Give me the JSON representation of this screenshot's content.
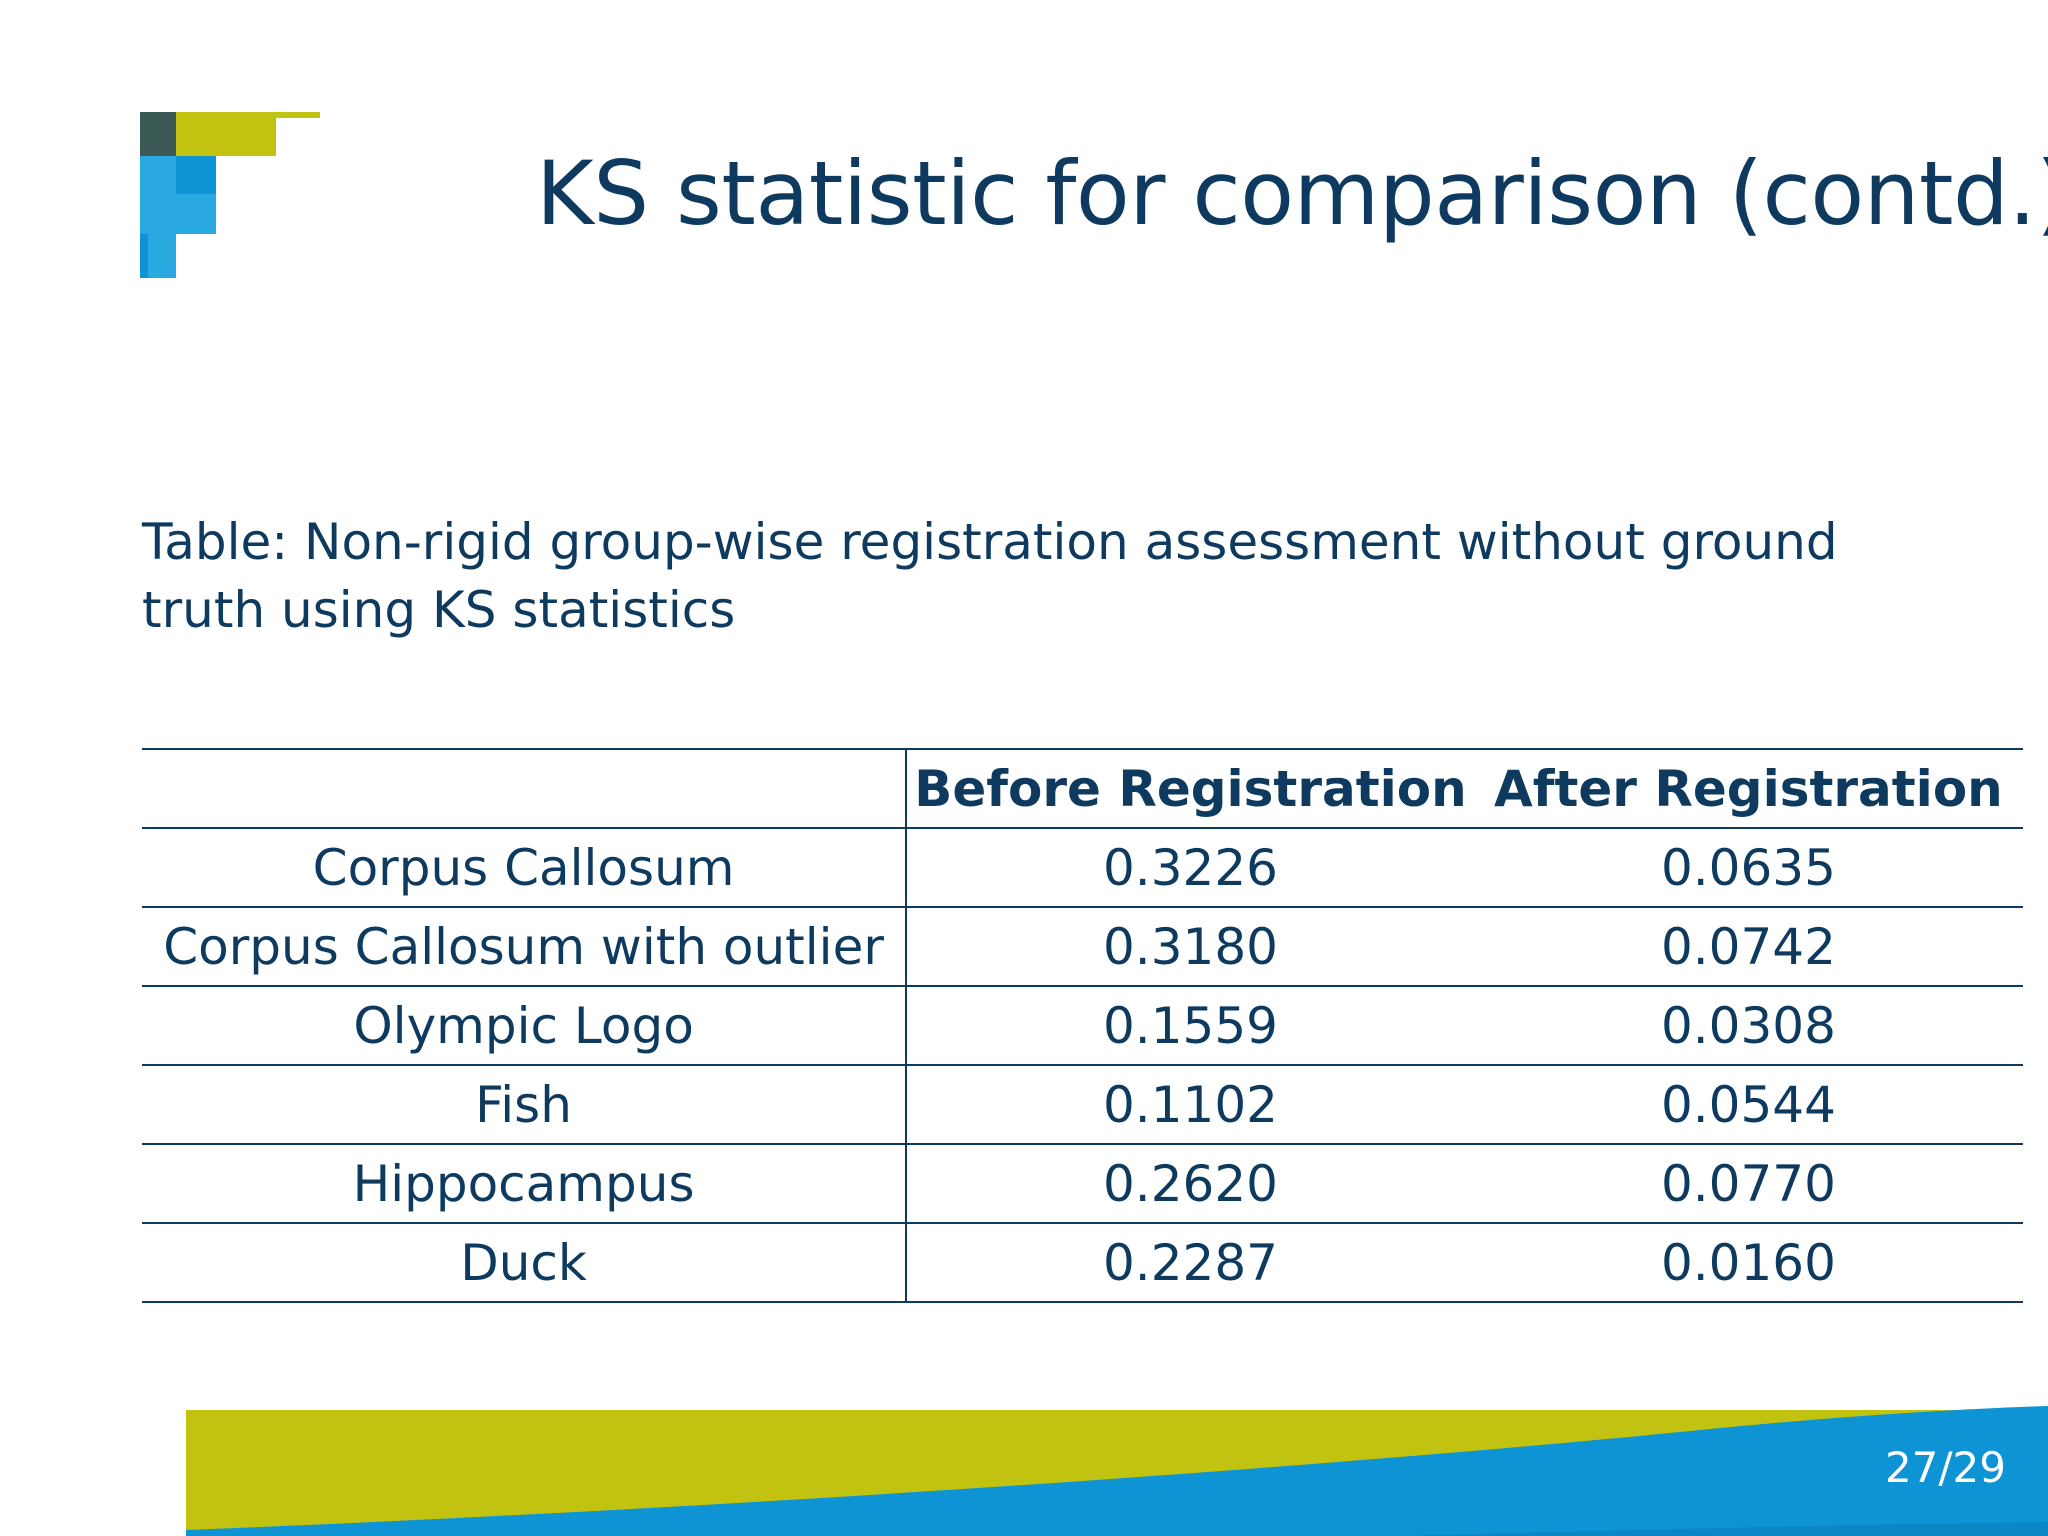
{
  "slide": {
    "title": "KS statistic for comparison (contd.)",
    "caption": "Table: Non-rigid group-wise registration assessment without ground truth using KS statistics",
    "page_number": "27/29"
  },
  "table": {
    "headers": [
      "",
      "Before Registration",
      "After Registration"
    ],
    "rows": [
      {
        "name": "Corpus Callosum",
        "before": "0.3226",
        "after": "0.0635"
      },
      {
        "name": "Corpus Callosum with outlier",
        "before": "0.3180",
        "after": "0.0742"
      },
      {
        "name": "Olympic Logo",
        "before": "0.1559",
        "after": "0.0308"
      },
      {
        "name": "Fish",
        "before": "0.1102",
        "after": "0.0544"
      },
      {
        "name": "Hippocampus",
        "before": "0.2620",
        "after": "0.0770"
      },
      {
        "name": "Duck",
        "before": "0.2287",
        "after": "0.0160"
      }
    ]
  },
  "colors": {
    "text": "#0d3a5e",
    "lime": "#c2c310",
    "blue": "#0e93d4",
    "light_blue": "#2aa8e0"
  }
}
